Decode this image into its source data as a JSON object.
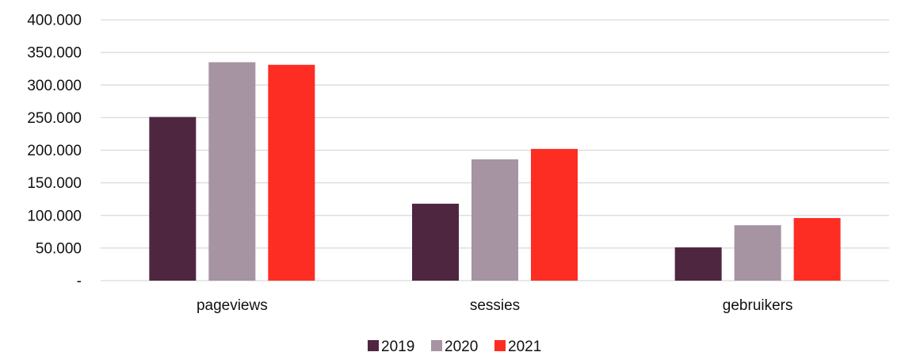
{
  "chart_data": {
    "type": "bar",
    "title": "",
    "xlabel": "",
    "ylabel": "",
    "categories": [
      "pageviews",
      "sessies",
      "gebruikers"
    ],
    "series": [
      {
        "name": "2019",
        "color": "#4f2640",
        "values": [
          251000,
          118000,
          51000
        ]
      },
      {
        "name": "2020",
        "color": "#a694a2",
        "values": [
          335000,
          186000,
          85000
        ]
      },
      {
        "name": "2021",
        "color": "#fd2d23",
        "values": [
          331000,
          202000,
          96000
        ]
      }
    ],
    "ylim": [
      0,
      400000
    ],
    "yticks": [
      0,
      50000,
      100000,
      150000,
      200000,
      250000,
      300000,
      350000,
      400000
    ],
    "ytick_labels": [
      "-",
      "50.000",
      "100.000",
      "150.000",
      "200.000",
      "250.000",
      "300.000",
      "350.000",
      "400.000"
    ],
    "grid": true,
    "legend_position": "bottom"
  }
}
